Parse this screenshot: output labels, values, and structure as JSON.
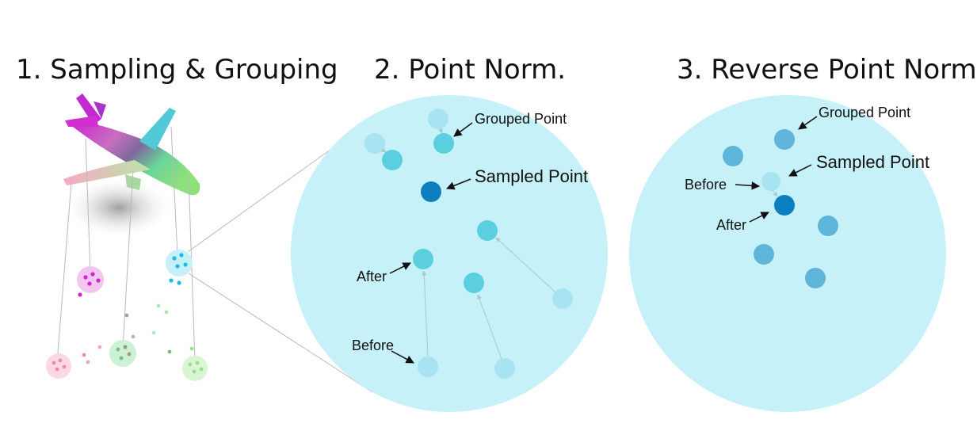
{
  "titles": {
    "sampling_grouping": "1. Sampling & Grouping",
    "point_norm": "2. Point Norm.",
    "reverse_point_norm": "3. Reverse Point Norm."
  },
  "labels": {
    "grouped_point": "Grouped Point",
    "sampled_point": "Sampled Point",
    "after": "After",
    "before": "Before"
  },
  "colors": {
    "region_fill": "#c6f1f8",
    "grouped_point": "#5bcfe0",
    "point_before": "#a8e3f1",
    "sampled_point": "#0b7fbf",
    "reverse_grouped_point": "#5fb4d9",
    "connector_line": "#b9b9b9"
  }
}
